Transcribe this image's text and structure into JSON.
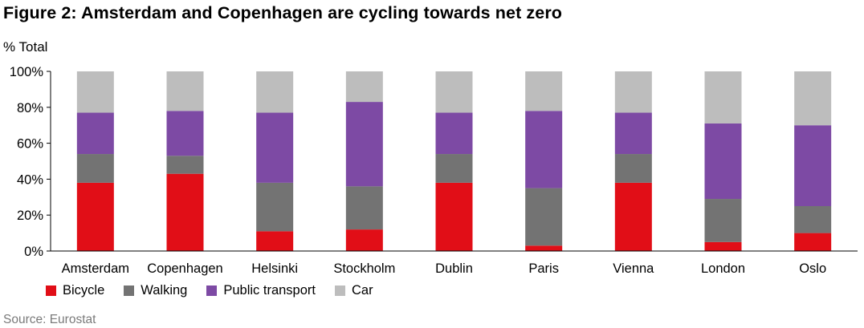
{
  "title": "Figure 2: Amsterdam and Copenhagen are cycling towards net zero",
  "unit_label": "% Total",
  "source": "Source: Eurostat",
  "chart_data": {
    "type": "bar",
    "stacked": true,
    "categories": [
      "Amsterdam",
      "Copenhagen",
      "Helsinki",
      "Stockholm",
      "Dublin",
      "Paris",
      "Vienna",
      "London",
      "Oslo"
    ],
    "series": [
      {
        "name": "Bicycle",
        "color": "#e10e17",
        "values": [
          38,
          43,
          11,
          12,
          38,
          3,
          38,
          5,
          10
        ]
      },
      {
        "name": "Walking",
        "color": "#737373",
        "values": [
          16,
          10,
          27,
          24,
          16,
          32,
          16,
          24,
          15
        ]
      },
      {
        "name": "Public transport",
        "color": "#7d4aa4",
        "values": [
          23,
          25,
          39,
          47,
          23,
          43,
          23,
          42,
          45
        ]
      },
      {
        "name": "Car",
        "color": "#bdbdbd",
        "values": [
          23,
          22,
          23,
          17,
          23,
          22,
          23,
          29,
          30
        ]
      }
    ],
    "ylim": [
      0,
      100
    ],
    "yticks": [
      0,
      20,
      40,
      60,
      80,
      100
    ],
    "ytick_labels": [
      "0%",
      "20%",
      "40%",
      "60%",
      "80%",
      "100%"
    ],
    "xlabel": "",
    "ylabel": "% Total",
    "grid": false,
    "legend_position": "bottom-left"
  }
}
